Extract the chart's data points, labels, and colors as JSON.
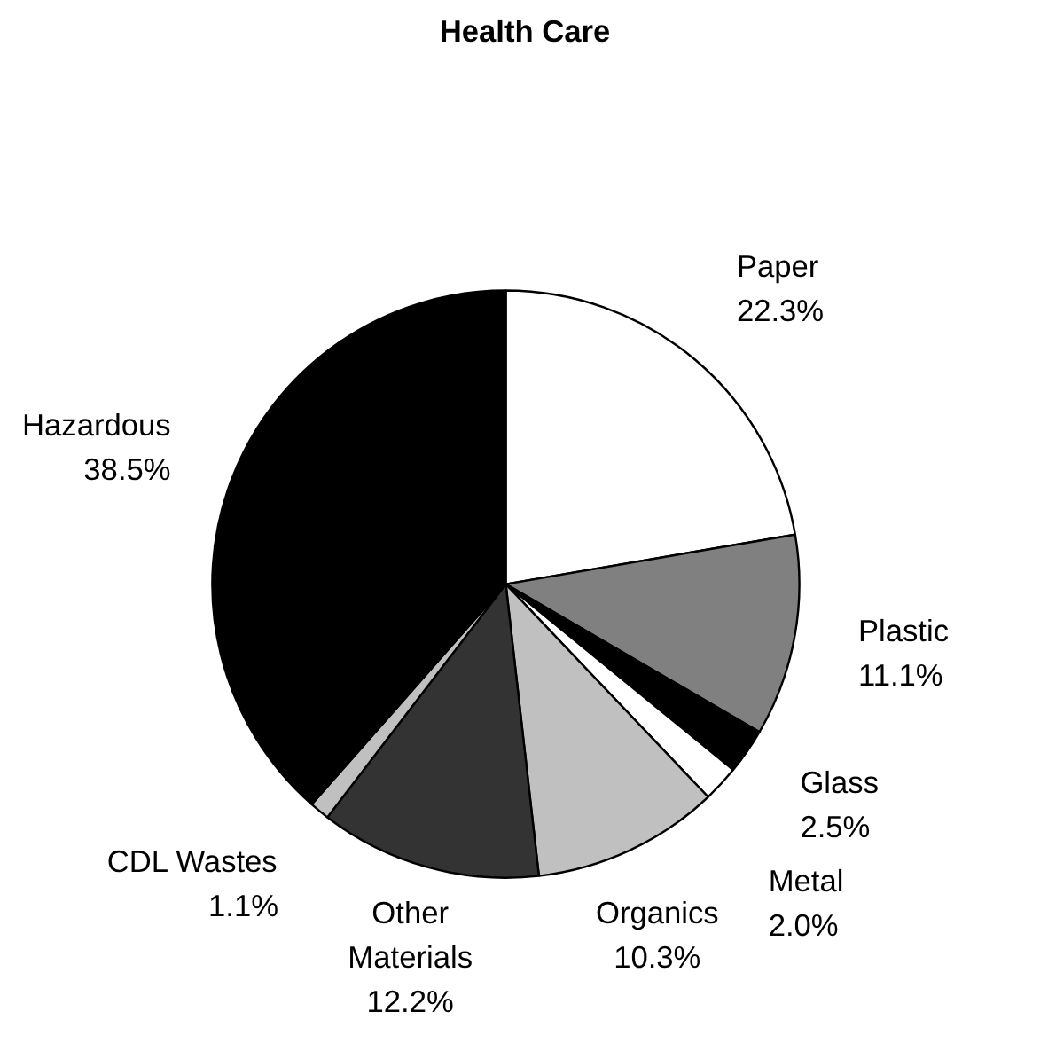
{
  "chart_data": {
    "type": "pie",
    "title": "Health Care",
    "categories": [
      "Paper",
      "Plastic",
      "Glass",
      "Metal",
      "Organics",
      "Other Materials",
      "CDL Wastes",
      "Hazardous"
    ],
    "values": [
      22.3,
      11.1,
      2.5,
      2.0,
      10.3,
      12.2,
      1.1,
      38.5
    ],
    "colors": [
      "#ffffff",
      "#808080",
      "#000000",
      "#ffffff",
      "#c0c0c0",
      "#333333",
      "#c0c0c0",
      "#000000"
    ],
    "value_labels": [
      "22.3%",
      "11.1%",
      "2.5%",
      "2.0%",
      "10.3%",
      "12.2%",
      "1.1%",
      "38.5%"
    ]
  }
}
